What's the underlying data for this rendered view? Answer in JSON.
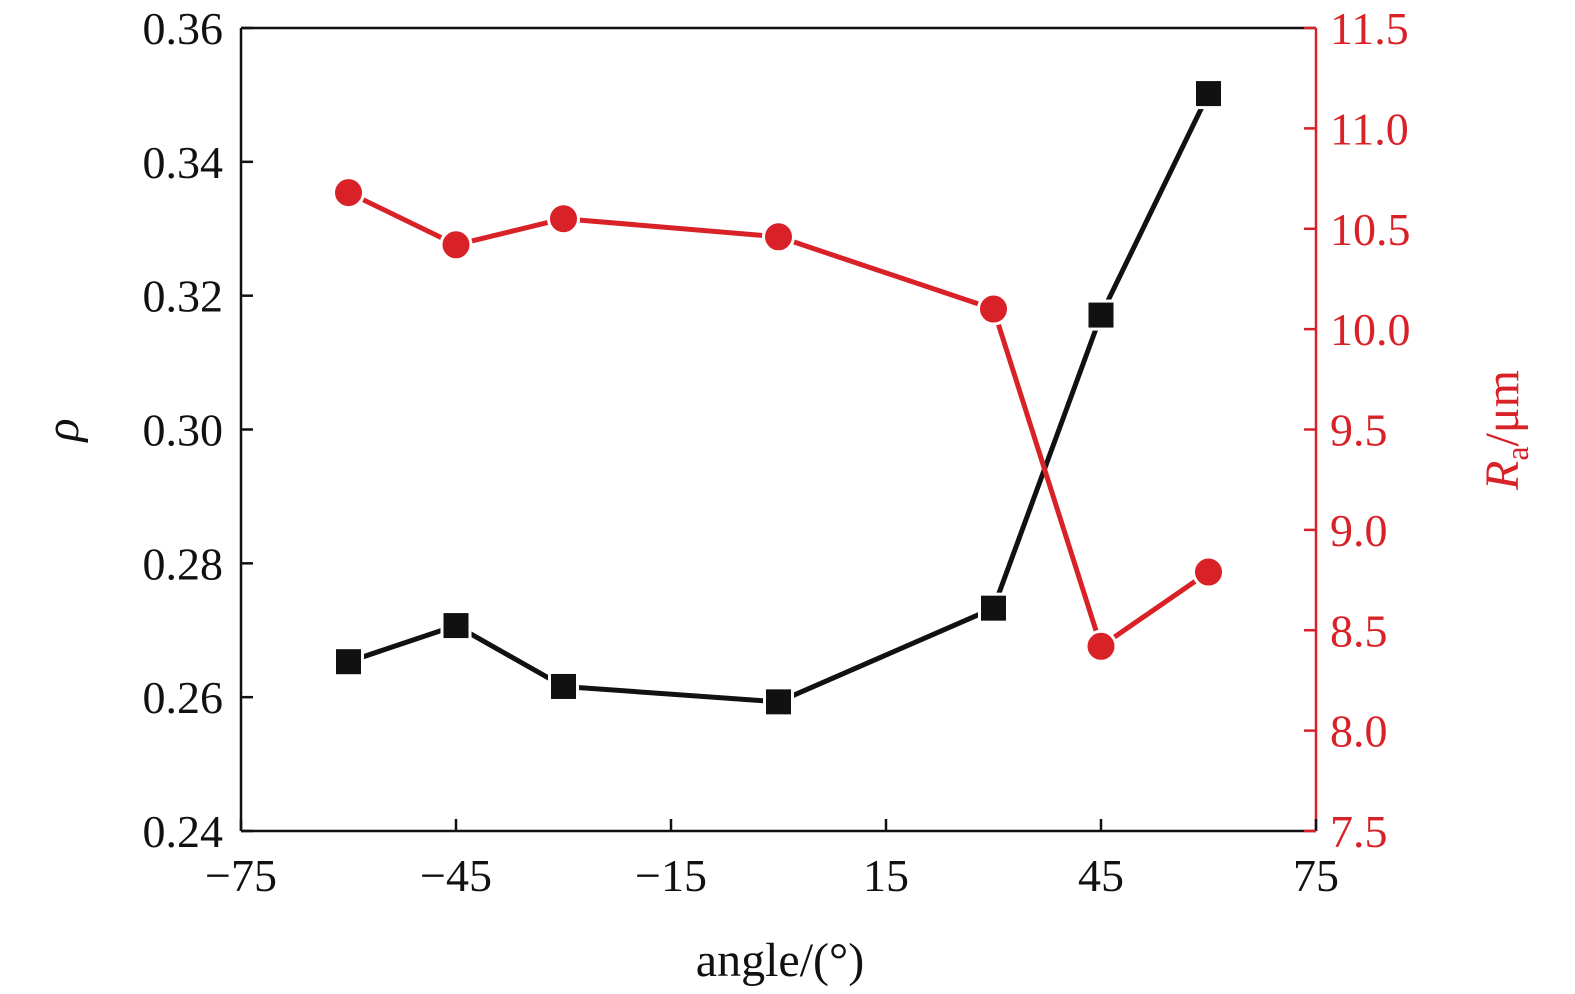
{
  "chart_data": {
    "type": "line",
    "xlabel": "angle/(°)",
    "ylabel_left": "ρ",
    "ylabel_right_main": "R",
    "ylabel_right_sub": "a",
    "ylabel_right_unit": "/μm",
    "xlim": [
      -75,
      75
    ],
    "ylim_left": [
      0.24,
      0.36
    ],
    "ylim_right": [
      7.5,
      11.5
    ],
    "x_ticks": [
      -75,
      -45,
      -15,
      15,
      45,
      75
    ],
    "x_tick_labels": [
      "−75",
      "−45",
      "−15",
      "15",
      "45",
      "75"
    ],
    "y_left_ticks": [
      0.24,
      0.26,
      0.28,
      0.3,
      0.32,
      0.34,
      0.36
    ],
    "y_left_tick_labels": [
      "0.24",
      "0.26",
      "0.28",
      "0.30",
      "0.32",
      "0.34",
      "0.36"
    ],
    "y_right_ticks": [
      7.5,
      8.0,
      8.5,
      9.0,
      9.5,
      10.0,
      10.5,
      11.0,
      11.5
    ],
    "y_right_tick_labels": [
      "7.5",
      "8.0",
      "8.5",
      "9.0",
      "9.5",
      "10.0",
      "10.5",
      "11.0",
      "11.5"
    ],
    "grid": false,
    "series": [
      {
        "axis": "left",
        "marker": "square",
        "color": "#111111",
        "x": [
          -60,
          -45,
          -30,
          0,
          30,
          45,
          60
        ],
        "y": [
          0.2653,
          0.2707,
          0.2616,
          0.2593,
          0.2733,
          0.3171,
          0.3502
        ]
      },
      {
        "axis": "right",
        "marker": "circle",
        "color": "#d92228",
        "x": [
          -60,
          -45,
          -30,
          0,
          30,
          45,
          60
        ],
        "y": [
          10.68,
          10.42,
          10.55,
          10.46,
          10.1,
          8.42,
          8.79
        ]
      }
    ]
  }
}
